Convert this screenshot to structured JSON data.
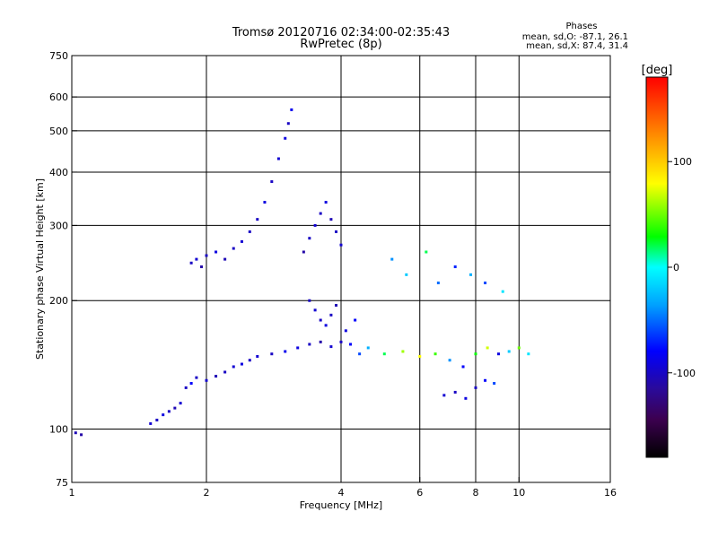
{
  "chart_data": {
    "type": "scatter",
    "title": "Tromsø 20120716 02:34:00-02:35:43",
    "subtitle": "RwPretec (8p)",
    "stats": {
      "heading": "Phases",
      "line_o": "mean, sd,O: -87.1, 26.1",
      "line_x": "mean, sd,X: 87.4, 31.4"
    },
    "xlabel": "Frequency [MHz]",
    "ylabel": "Stationary phase Virtual Height [km]",
    "x_scale": "log",
    "y_scale": "log",
    "xlim": [
      1,
      16
    ],
    "ylim": [
      75,
      750
    ],
    "x_ticks": [
      1,
      2,
      4,
      6,
      8,
      10,
      16
    ],
    "x_tick_labels": [
      "1",
      "2",
      "4",
      "6",
      "8",
      "10",
      "16"
    ],
    "x_grid": [
      2,
      4,
      6,
      8,
      10
    ],
    "y_ticks": [
      75,
      100,
      200,
      300,
      400,
      500,
      600,
      750
    ],
    "y_tick_labels": [
      "75",
      "100",
      "200",
      "300",
      "400",
      "500",
      "600",
      "750"
    ],
    "y_grid": [
      100,
      200,
      300,
      400,
      500,
      600
    ],
    "grid": true,
    "colorbar": {
      "label": "[deg]",
      "range": [
        -180,
        180
      ],
      "ticks": [
        100,
        0,
        -100
      ],
      "tick_labels": [
        "100",
        "0",
        "-100"
      ],
      "colors": [
        "#000000",
        "#3c0050",
        "#2a0a9a",
        "#0000ff",
        "#00a0ff",
        "#00ffff",
        "#00ff00",
        "#ffff00",
        "#ff8000",
        "#ff0000"
      ]
    },
    "series": [
      {
        "points": [
          [
            1.02,
            98,
            -105
          ],
          [
            1.05,
            97,
            -110
          ],
          [
            1.5,
            103,
            -95
          ],
          [
            1.55,
            105,
            -100
          ],
          [
            1.6,
            108,
            -90
          ],
          [
            1.65,
            110,
            -100
          ],
          [
            1.7,
            112,
            -105
          ],
          [
            1.75,
            115,
            -95
          ],
          [
            1.8,
            125,
            -100
          ],
          [
            1.85,
            128,
            -80
          ],
          [
            1.9,
            132,
            -100
          ],
          [
            2.0,
            130,
            -95
          ],
          [
            2.1,
            133,
            -105
          ],
          [
            2.2,
            136,
            -100
          ],
          [
            2.3,
            140,
            -95
          ],
          [
            2.4,
            142,
            -90
          ],
          [
            2.5,
            145,
            -100
          ],
          [
            2.6,
            148,
            -95
          ],
          [
            2.8,
            150,
            -100
          ],
          [
            3.0,
            152,
            -85
          ],
          [
            3.2,
            155,
            -90
          ],
          [
            3.4,
            158,
            -100
          ],
          [
            3.6,
            160,
            -110
          ],
          [
            3.8,
            156,
            -95
          ],
          [
            4.0,
            160,
            -100
          ],
          [
            4.2,
            158,
            -80
          ],
          [
            4.4,
            150,
            -60
          ],
          [
            4.6,
            155,
            -30
          ],
          [
            5.0,
            150,
            20
          ],
          [
            5.5,
            152,
            60
          ],
          [
            6.0,
            148,
            80
          ],
          [
            6.5,
            150,
            40
          ],
          [
            7.0,
            145,
            -40
          ],
          [
            7.5,
            140,
            -80
          ],
          [
            8.0,
            150,
            30
          ],
          [
            8.5,
            155,
            70
          ],
          [
            9.0,
            150,
            -90
          ],
          [
            9.5,
            152,
            -20
          ],
          [
            10.0,
            155,
            50
          ],
          [
            10.5,
            150,
            -10
          ],
          [
            1.85,
            245,
            -100
          ],
          [
            1.9,
            250,
            -95
          ],
          [
            1.95,
            240,
            -110
          ],
          [
            2.0,
            255,
            -100
          ],
          [
            2.1,
            260,
            -90
          ],
          [
            2.2,
            250,
            -105
          ],
          [
            2.3,
            265,
            -100
          ],
          [
            2.4,
            275,
            -95
          ],
          [
            2.5,
            290,
            -100
          ],
          [
            2.6,
            310,
            -100
          ],
          [
            2.7,
            340,
            -90
          ],
          [
            2.8,
            380,
            -100
          ],
          [
            2.9,
            430,
            -95
          ],
          [
            3.0,
            480,
            -90
          ],
          [
            3.05,
            520,
            -100
          ],
          [
            3.1,
            560,
            -85
          ],
          [
            3.3,
            260,
            -110
          ],
          [
            3.4,
            280,
            -100
          ],
          [
            3.5,
            300,
            -95
          ],
          [
            3.6,
            320,
            -100
          ],
          [
            3.7,
            340,
            -90
          ],
          [
            3.8,
            310,
            -105
          ],
          [
            3.9,
            290,
            -100
          ],
          [
            4.0,
            270,
            -95
          ],
          [
            3.4,
            200,
            -100
          ],
          [
            3.5,
            190,
            -95
          ],
          [
            3.6,
            180,
            -100
          ],
          [
            3.7,
            175,
            -90
          ],
          [
            3.8,
            185,
            -100
          ],
          [
            3.9,
            195,
            -105
          ],
          [
            4.1,
            170,
            -90
          ],
          [
            4.3,
            180,
            -80
          ],
          [
            5.2,
            250,
            -40
          ],
          [
            5.6,
            230,
            -20
          ],
          [
            6.2,
            260,
            20
          ],
          [
            6.6,
            220,
            -50
          ],
          [
            7.2,
            240,
            -70
          ],
          [
            7.8,
            230,
            -30
          ],
          [
            8.4,
            220,
            -60
          ],
          [
            9.2,
            210,
            -10
          ],
          [
            6.8,
            120,
            -95
          ],
          [
            7.2,
            122,
            -100
          ],
          [
            7.6,
            118,
            -90
          ],
          [
            8.0,
            125,
            -100
          ],
          [
            8.4,
            130,
            -80
          ],
          [
            8.8,
            128,
            -60
          ]
        ]
      }
    ]
  }
}
